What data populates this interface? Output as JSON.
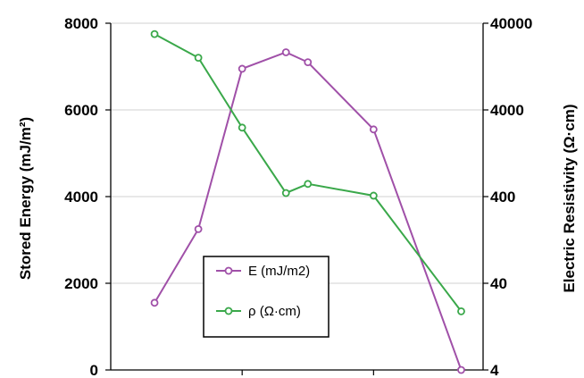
{
  "chart_data": {
    "type": "line",
    "x": [
      1,
      2,
      3,
      4,
      4.5,
      6,
      8
    ],
    "series": [
      {
        "name": "E (mJ/m2)",
        "axis": "left",
        "color": "#a050a8",
        "values": [
          1550,
          3250,
          6950,
          7330,
          7100,
          5550,
          0
        ]
      },
      {
        "name": "ρ (Ω·cm)",
        "axis": "right",
        "color": "#3aa84a",
        "values": [
          30000,
          16000,
          2500,
          440,
          560,
          410,
          19
        ]
      }
    ],
    "left_axis": {
      "label": "Stored Energy (mJ/m²)",
      "ylim": [
        0,
        8000
      ],
      "ticks": [
        "0",
        "2000",
        "4000",
        "6000",
        "8000"
      ]
    },
    "right_axis": {
      "label": "Electric Resistivity (Ω·cm)",
      "scale": "log",
      "ylim": [
        4,
        40000
      ],
      "ticks": [
        "4",
        "40",
        "400",
        "4000",
        "40000"
      ]
    },
    "x_axis": {
      "xlim": [
        0,
        8.5
      ],
      "tick_labels_shown": false,
      "minor_ticks": [
        3,
        6
      ]
    },
    "grid": {
      "horizontal": true,
      "color": "#d9d9d9"
    },
    "legend": {
      "placement": "center-bottom",
      "boxed": true
    }
  }
}
